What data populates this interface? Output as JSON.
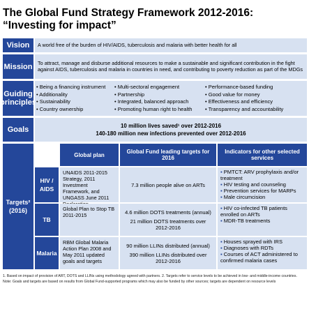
{
  "header": {
    "title": "The Global Fund Strategy Framework 2012-2016: “Investing for impact”"
  },
  "vision": {
    "label": "Vision",
    "text": "A world free of the burden of HIV/AIDS, tuberculosis and malaria with better health for all"
  },
  "mission": {
    "label": "Mission",
    "text": "To attract, manage and disburse additional resources to make a sustainable and significant contribution in the fight against AIDS, tuberculosis and malaria in countries in need, and contributing to poverty reduction as part of the MDGs"
  },
  "guiding_principles": {
    "label": "Guiding principles",
    "columns": [
      [
        "Being a financing instrument",
        "Additionality",
        "Sustainability",
        "Country ownership"
      ],
      [
        "Multi-sectoral engagement",
        "Partnership",
        "Integrated, balanced approach",
        "Promoting human right to health"
      ],
      [
        "Performance-based funding",
        "Good value for money",
        "Effectiveness and efficiency",
        "Transparency and accountability"
      ]
    ]
  },
  "goals": {
    "label": "Goals",
    "lines": [
      "10 million lives saved¹ over 2012-2016",
      "140-180 million new infections prevented over 2012-2016"
    ]
  },
  "targets": {
    "label": "Targets²",
    "period": "(2016)",
    "headers": [
      "Global plan",
      "Global Fund leading targets for 2016",
      "Indicators for other selected services"
    ],
    "rows": [
      {
        "area": "HIV / AIDS",
        "global_plan": "UNAIDS 2011-2015 Strategy, 2011 Investment Framework, and UNGASS June 2011 Declaration",
        "leading_targets": [
          "7.3 million people alive on ARTs"
        ],
        "indicators": [
          "PMTCT: ARV prophylaxis and/or treatment",
          "HIV testing and counseling",
          "Prevention services for MARPs",
          "Male circumcision"
        ]
      },
      {
        "area": "TB",
        "global_plan": "Global Plan to Stop TB 2011-2015",
        "leading_targets": [
          "4.6 million DOTS treatments (annual)",
          "21 million DOTS treatments over 2012-2016"
        ],
        "indicators": [
          "HIV co-infected TB patients enrolled on ARTs",
          "MDR-TB treatments"
        ]
      },
      {
        "area": "Malaria",
        "global_plan": "RBM Global Malaria Action Plan 2008 and May 2011 updated goals and targets",
        "leading_targets": [
          "90 million LLINs distributed (annual)",
          "390 million LLINs distributed over 2012-2016"
        ],
        "indicators": [
          "Houses sprayed with IRS",
          "Diagnoses with RDTs",
          "Courses of ACT administered to confirmed malaria cases"
        ]
      }
    ]
  },
  "footnotes": [
    "1. Based on impact of provision of ART, DOTS and LLINs using methodology agreed with partners.  2. Targets refer to service levels to be achieved in low- and middle-income countries.",
    "Note: Goals and targets are based on results from Global Fund-supported programs which may also be funded by other sources; targets are dependent on resource levels"
  ]
}
